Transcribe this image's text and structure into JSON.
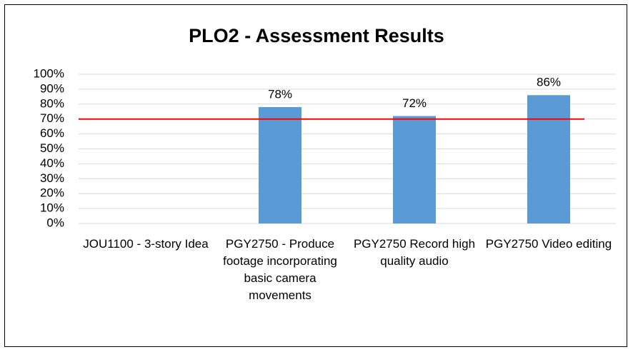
{
  "chart_data": {
    "type": "bar",
    "title": "PLO2 - Assessment Results",
    "categories": [
      "JOU1100 - 3-story Idea",
      "PGY2750 - Produce footage incorporating basic camera movements",
      "PGY2750 Record high quality audio",
      "PGY2750 Video editing"
    ],
    "values": [
      null,
      78,
      72,
      86
    ],
    "value_labels": [
      null,
      "78%",
      "72%",
      "86%"
    ],
    "color": "#5b9bd5",
    "ylim": [
      0,
      100
    ],
    "yticks": [
      {
        "value": 0,
        "label": "0%"
      },
      {
        "value": 10,
        "label": "10%"
      },
      {
        "value": 20,
        "label": "20%"
      },
      {
        "value": 30,
        "label": "30%"
      },
      {
        "value": 40,
        "label": "40%"
      },
      {
        "value": 50,
        "label": "50%"
      },
      {
        "value": 60,
        "label": "60%"
      },
      {
        "value": 70,
        "label": "70%"
      },
      {
        "value": 80,
        "label": "80%"
      },
      {
        "value": 90,
        "label": "90%"
      },
      {
        "value": 100,
        "label": "100%"
      }
    ],
    "grid": true,
    "reference_line": {
      "value": 70,
      "color": "#ff0000"
    }
  }
}
